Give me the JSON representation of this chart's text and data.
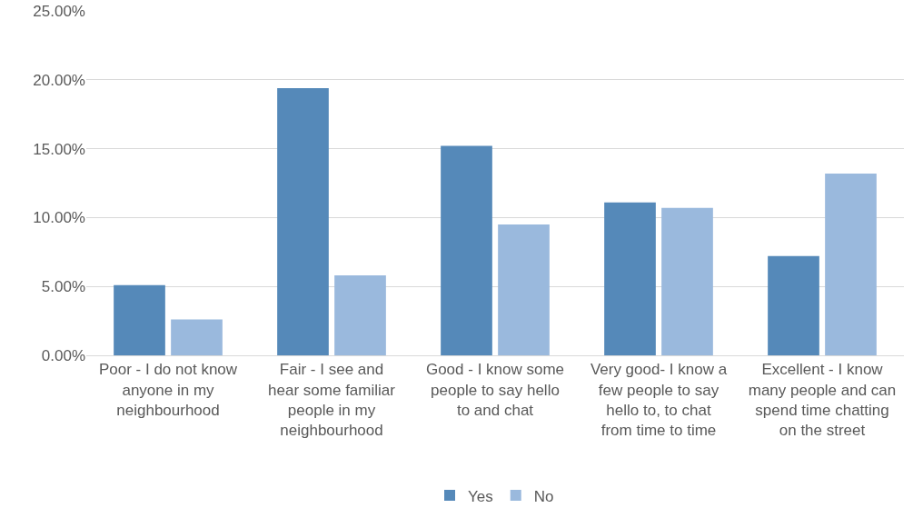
{
  "chart_data": {
    "type": "bar",
    "categories": [
      "Poor - I do not know anyone in my neighbourhood",
      "Fair - I see and hear some familiar people in my neighbourhood",
      "Good - I know some people to say hello to and chat",
      "Very good- I know a few people to say hello to, to chat from time to time",
      "Excellent - I know many people and can spend time chatting on the street"
    ],
    "series": [
      {
        "name": "Yes",
        "color": "#5589b9",
        "values": [
          5.1,
          19.4,
          15.2,
          11.1,
          7.2
        ]
      },
      {
        "name": "No",
        "color": "#9ab9dd",
        "values": [
          2.6,
          5.8,
          9.5,
          10.7,
          13.2
        ]
      }
    ],
    "ylim": [
      0,
      25
    ],
    "yticks": [
      {
        "value": 0,
        "label": "0.00%"
      },
      {
        "value": 5,
        "label": "5.00%"
      },
      {
        "value": 10,
        "label": "10.00%"
      },
      {
        "value": 15,
        "label": "15.00%"
      },
      {
        "value": 20,
        "label": "20.00%"
      },
      {
        "value": 25,
        "label": "25.00%"
      }
    ],
    "grid": "y",
    "legend": "bottom"
  }
}
